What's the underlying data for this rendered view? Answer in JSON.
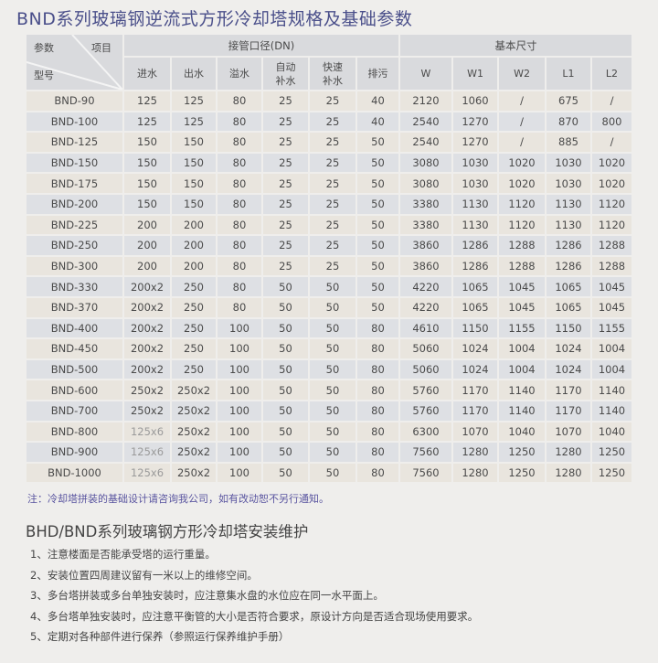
{
  "title": "BND系列玻璃钢逆流式方形冷却塔规格及基础参数",
  "table": {
    "corner": {
      "params": "参数",
      "items": "项目",
      "model": "型号"
    },
    "group_pipe": "接管口径(DN)",
    "group_size": "基本尺寸",
    "columns": [
      "进水",
      "出水",
      "溢水",
      "自动\n补水",
      "快速\n补水",
      "排污",
      "W",
      "W1",
      "W2",
      "L1",
      "L2"
    ],
    "rows": [
      [
        "BND-90",
        "125",
        "125",
        "80",
        "25",
        "25",
        "40",
        "2120",
        "1060",
        "/",
        "675",
        "/"
      ],
      [
        "BND-100",
        "125",
        "125",
        "80",
        "25",
        "25",
        "40",
        "2540",
        "1270",
        "/",
        "870",
        "800"
      ],
      [
        "BND-125",
        "150",
        "150",
        "80",
        "25",
        "25",
        "50",
        "2540",
        "1270",
        "/",
        "885",
        "/"
      ],
      [
        "BND-150",
        "150",
        "150",
        "80",
        "25",
        "25",
        "50",
        "3080",
        "1030",
        "1020",
        "1030",
        "1020"
      ],
      [
        "BND-175",
        "150",
        "150",
        "80",
        "25",
        "25",
        "50",
        "3080",
        "1030",
        "1020",
        "1030",
        "1020"
      ],
      [
        "BND-200",
        "150",
        "150",
        "80",
        "25",
        "25",
        "50",
        "3380",
        "1130",
        "1120",
        "1130",
        "1120"
      ],
      [
        "BND-225",
        "200",
        "200",
        "80",
        "25",
        "25",
        "50",
        "3380",
        "1130",
        "1120",
        "1130",
        "1120"
      ],
      [
        "BND-250",
        "200",
        "200",
        "80",
        "25",
        "25",
        "50",
        "3860",
        "1286",
        "1288",
        "1286",
        "1288"
      ],
      [
        "BND-300",
        "200",
        "200",
        "80",
        "25",
        "25",
        "50",
        "3860",
        "1286",
        "1288",
        "1286",
        "1288"
      ],
      [
        "BND-330",
        "200x2",
        "250",
        "80",
        "50",
        "50",
        "50",
        "4220",
        "1065",
        "1045",
        "1065",
        "1045"
      ],
      [
        "BND-370",
        "200x2",
        "250",
        "80",
        "50",
        "50",
        "50",
        "4220",
        "1065",
        "1045",
        "1065",
        "1045"
      ],
      [
        "BND-400",
        "200x2",
        "250",
        "100",
        "50",
        "50",
        "80",
        "4610",
        "1150",
        "1155",
        "1150",
        "1155"
      ],
      [
        "BND-450",
        "200x2",
        "250",
        "100",
        "50",
        "50",
        "80",
        "5060",
        "1024",
        "1004",
        "1024",
        "1004"
      ],
      [
        "BND-500",
        "200x2",
        "250",
        "100",
        "50",
        "50",
        "80",
        "5060",
        "1024",
        "1004",
        "1024",
        "1004"
      ],
      [
        "BND-600",
        "250x2",
        "250x2",
        "100",
        "50",
        "50",
        "80",
        "5760",
        "1170",
        "1140",
        "1170",
        "1140"
      ],
      [
        "BND-700",
        "250x2",
        "250x2",
        "100",
        "50",
        "50",
        "80",
        "5760",
        "1170",
        "1140",
        "1170",
        "1140"
      ],
      [
        "BND-800",
        "125x6",
        "250x2",
        "100",
        "50",
        "50",
        "80",
        "6300",
        "1070",
        "1040",
        "1070",
        "1040"
      ],
      [
        "BND-900",
        "125x6",
        "250x2",
        "100",
        "50",
        "50",
        "80",
        "7560",
        "1280",
        "1250",
        "1280",
        "1250"
      ],
      [
        "BND-1000",
        "125x6",
        "250x2",
        "100",
        "50",
        "50",
        "80",
        "7560",
        "1280",
        "1250",
        "1280",
        "1250"
      ]
    ]
  },
  "note": "注：冷却塔拼装的基础设计请咨询我公司，如有改动恕不另行通知。",
  "subtitle": "BHD/BND系列玻璃钢方形冷却塔安装维护",
  "items": [
    "1、注意楼面是否能承受塔的运行重量。",
    "2、安装位置四周建议留有一米以上的维修空间。",
    "3、多台塔拼装或多台单独安装时，应注意集水盘的水位应在同一水平面上。",
    "4、多台塔单独安装时，应注意平衡管的大小是否符合要求，原设计方向是否适合现场使用要求。",
    "5、定期对各种部件进行保养（参照运行保养维护手册）"
  ],
  "colors": {
    "title": "#4a4f8a",
    "note": "#5a55a0",
    "row_beige": "#e9e5de",
    "row_blue": "#dee0e4",
    "header": "#d9dadd"
  }
}
